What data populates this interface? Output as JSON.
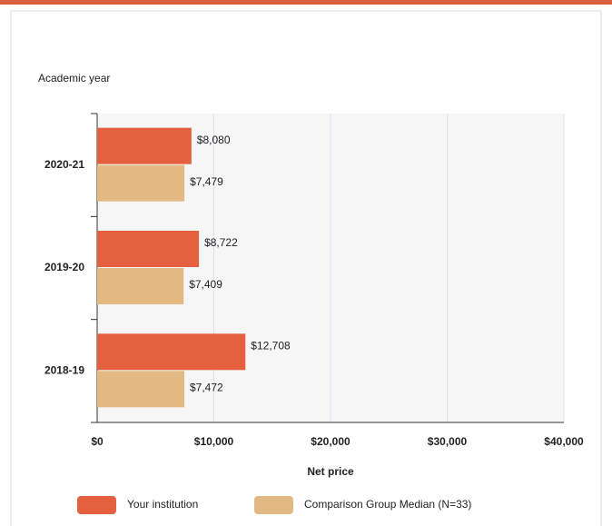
{
  "chart_data": {
    "type": "bar",
    "orientation": "horizontal",
    "y_title": "Academic year",
    "x_title": "Net price",
    "categories": [
      "2020-21",
      "2019-20",
      "2018-19"
    ],
    "series": [
      {
        "name": "Your institution",
        "color": "#e4603e",
        "values": [
          8080,
          8722,
          12708
        ],
        "value_labels": [
          "$8,080",
          "$8,722",
          "$12,708"
        ]
      },
      {
        "name": "Comparison Group Median (N=33)",
        "color": "#e2b983",
        "values": [
          7479,
          7409,
          7472
        ],
        "value_labels": [
          "$7,479",
          "$7,409",
          "$7,472"
        ]
      }
    ],
    "xlim": [
      0,
      40000
    ],
    "xticks": [
      {
        "value": 0,
        "label": "$0"
      },
      {
        "value": 10000,
        "label": "$10,000"
      },
      {
        "value": 20000,
        "label": "$20,000"
      },
      {
        "value": 30000,
        "label": "$30,000"
      },
      {
        "value": 40000,
        "label": "$40,000"
      }
    ],
    "grid": true
  }
}
